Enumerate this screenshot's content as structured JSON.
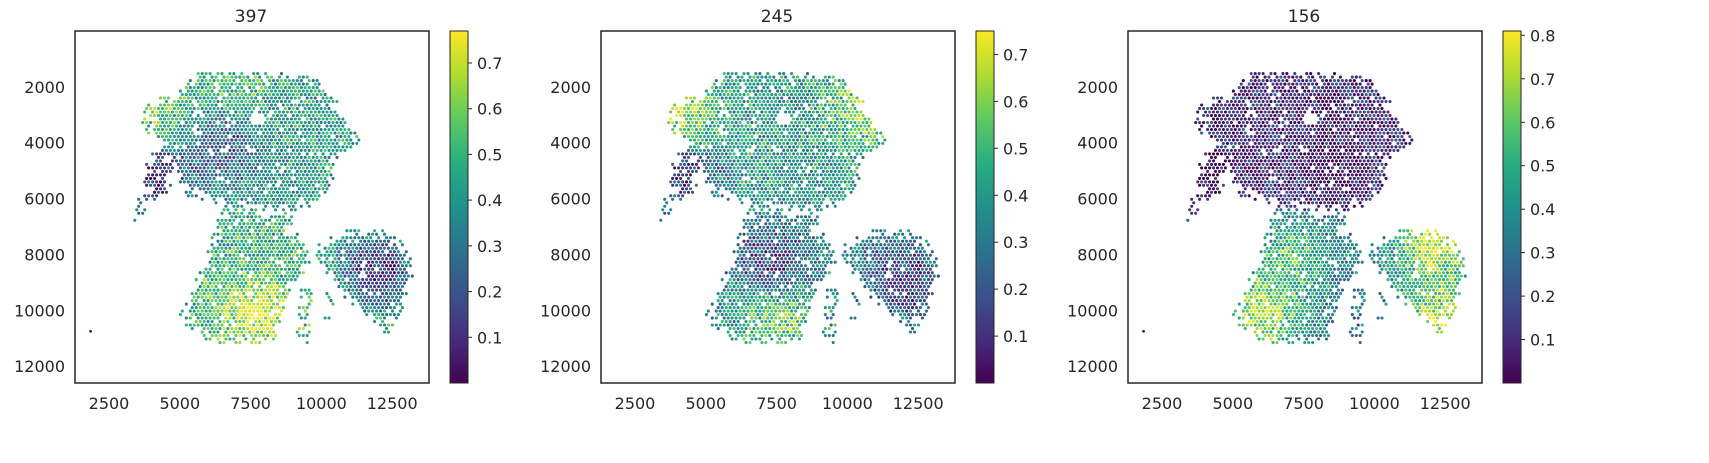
{
  "chart_data": [
    {
      "type": "scatter",
      "title": "397",
      "xlabel": "",
      "ylabel": "",
      "xlim": [
        1300,
        13800
      ],
      "ylim": [
        12600,
        0
      ],
      "x_ticks": [
        "2500",
        "5000",
        "7500",
        "10000",
        "12500"
      ],
      "y_ticks": [
        "2000",
        "4000",
        "6000",
        "8000",
        "10000",
        "12000"
      ],
      "colorbar": {
        "range": [
          0.0,
          0.77
        ],
        "ticks": [
          "0.1",
          "0.2",
          "0.3",
          "0.4",
          "0.5",
          "0.6",
          "0.7"
        ],
        "colormap": "viridis"
      },
      "pattern": {
        "base": 0.42,
        "lower_shift": 0.05,
        "hot": [
          {
            "x": 4100,
            "y": 3200,
            "v": 0.62
          },
          {
            "x": 7800,
            "y": 10100,
            "v": 0.74
          },
          {
            "x": 7000,
            "y": 2300,
            "v": 0.55
          }
        ],
        "cold": [
          {
            "x": 4200,
            "y": 5400,
            "v": 0.08
          },
          {
            "x": 12000,
            "y": 8600,
            "v": 0.1
          },
          {
            "x": 6500,
            "y": 4200,
            "v": 0.18
          }
        ]
      },
      "isolated_points": [
        {
          "x": 1850,
          "y": 10750
        }
      ]
    },
    {
      "type": "scatter",
      "title": "245",
      "xlabel": "",
      "ylabel": "",
      "xlim": [
        1300,
        13800
      ],
      "ylim": [
        12600,
        0
      ],
      "x_ticks": [
        "2500",
        "5000",
        "7500",
        "10000",
        "12500"
      ],
      "y_ticks": [
        "2000",
        "4000",
        "6000",
        "8000",
        "10000",
        "12000"
      ],
      "colorbar": {
        "range": [
          0.0,
          0.75
        ],
        "ticks": [
          "0.1",
          "0.2",
          "0.3",
          "0.4",
          "0.5",
          "0.6",
          "0.7"
        ],
        "colormap": "viridis"
      },
      "pattern": {
        "base": 0.4,
        "lower_shift": -0.05,
        "hot": [
          {
            "x": 4000,
            "y": 3100,
            "v": 0.68
          },
          {
            "x": 10800,
            "y": 2600,
            "v": 0.65
          },
          {
            "x": 7600,
            "y": 10200,
            "v": 0.6
          }
        ],
        "cold": [
          {
            "x": 4300,
            "y": 5300,
            "v": 0.12
          },
          {
            "x": 12000,
            "y": 9000,
            "v": 0.12
          },
          {
            "x": 7300,
            "y": 8200,
            "v": 0.15
          }
        ]
      },
      "isolated_points": []
    },
    {
      "type": "scatter",
      "title": "156",
      "xlabel": "",
      "ylabel": "",
      "xlim": [
        1300,
        13800
      ],
      "ylim": [
        12600,
        0
      ],
      "x_ticks": [
        "2500",
        "5000",
        "7500",
        "10000",
        "12500"
      ],
      "y_ticks": [
        "2000",
        "4000",
        "6000",
        "8000",
        "10000",
        "12000"
      ],
      "colorbar": {
        "range": [
          0.0,
          0.81
        ],
        "ticks": [
          "0.1",
          "0.2",
          "0.3",
          "0.4",
          "0.5",
          "0.6",
          "0.7",
          "0.8"
        ],
        "colormap": "viridis"
      },
      "pattern": {
        "base": 0.1,
        "lower_shift": 0.22,
        "hot": [
          {
            "x": 12100,
            "y": 7600,
            "v": 0.78
          },
          {
            "x": 6000,
            "y": 10100,
            "v": 0.72
          },
          {
            "x": 12400,
            "y": 10300,
            "v": 0.75
          },
          {
            "x": 7000,
            "y": 8200,
            "v": 0.58
          }
        ],
        "cold": [
          {
            "x": 4200,
            "y": 5400,
            "v": 0.02
          },
          {
            "x": 8500,
            "y": 4500,
            "v": 0.04
          }
        ]
      },
      "isolated_points": [
        {
          "x": 1850,
          "y": 10750
        }
      ]
    }
  ]
}
